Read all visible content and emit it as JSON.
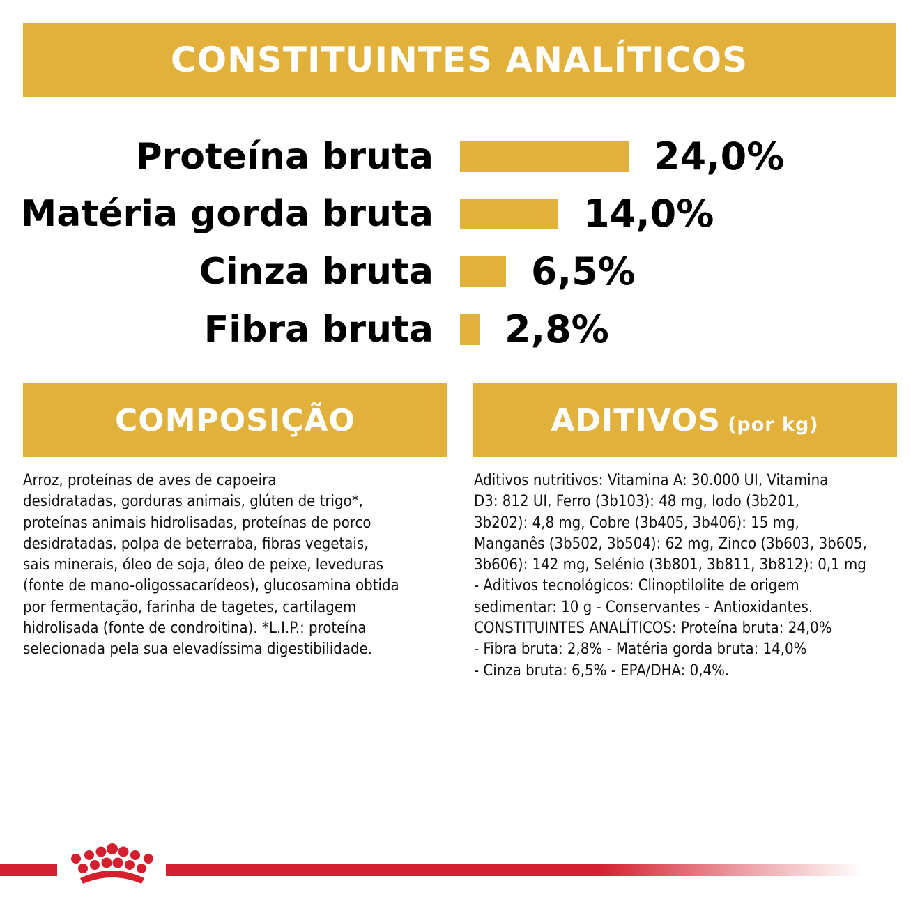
{
  "colors": {
    "gold": "#e2b13c",
    "red": "#d31f2e",
    "text": "#111111",
    "white": "#ffffff"
  },
  "analytics": {
    "title": "CONSTITUINTES ANALÍTICOS",
    "items": [
      {
        "label": "Proteína bruta",
        "value_text": "24,0%",
        "value": 24.0
      },
      {
        "label": "Matéria gorda bruta",
        "value_text": "14,0%",
        "value": 14.0
      },
      {
        "label": "Cinza bruta",
        "value_text": "6,5%",
        "value": 6.5
      },
      {
        "label": "Fibra bruta",
        "value_text": "2,8%",
        "value": 2.8
      }
    ]
  },
  "composition": {
    "title": "COMPOSIÇÃO",
    "lines": [
      "Arroz, proteínas de aves de capoeira",
      "desidratadas, gorduras animais, glúten de trigo*,",
      "proteínas animais hidrolisadas, proteínas de porco",
      "desidratadas, polpa de beterraba, fibras vegetais,",
      "sais minerais, óleo de soja, óleo de peixe, leveduras",
      "(fonte de mano-oligossacarídeos), glucosamina obtida",
      "por fermentação, farinha de tagetes, cartilagem",
      "hidrolisada (fonte de condroitina). *L.I.P.: proteína",
      "selecionada pela sua elevadíssima digestibilidade."
    ]
  },
  "additives": {
    "title": "ADITIVOS",
    "title_suffix": "(por kg)",
    "lines": [
      "Aditivos nutritivos: Vitamina A: 30.000 UI, Vitamina",
      "D3: 812 UI, Ferro (3b103): 48 mg, Iodo (3b201,",
      "3b202): 4,8 mg, Cobre (3b405, 3b406): 15 mg,",
      "Manganês (3b502, 3b504): 62 mg, Zinco (3b603, 3b605,",
      "3b606): 142 mg, Selénio (3b801, 3b811, 3b812): 0,1 mg",
      "- Aditivos tecnológicos: Clinoptilolite de origem",
      "sedimentar: 10 g - Conservantes - Antioxidantes.",
      "CONSTITUINTES ANALÍTICOS: Proteína bruta: 24,0%",
      "- Fibra bruta: 2,8% - Matéria gorda bruta: 14,0%",
      "- Cinza bruta: 6,5% - EPA/DHA: 0,4%."
    ]
  },
  "footer": {
    "logo_icon": "royal-canin-crown-icon"
  }
}
